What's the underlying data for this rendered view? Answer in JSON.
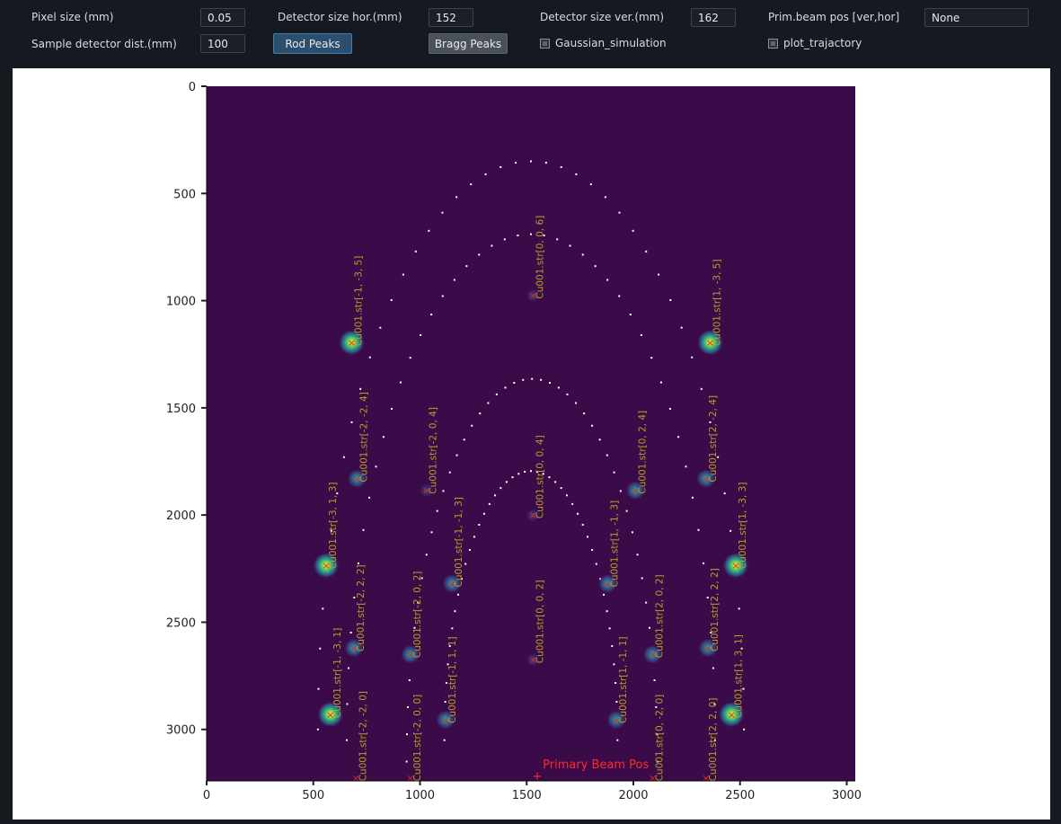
{
  "controls": {
    "pixel_size": {
      "label": "Pixel size (mm)",
      "value": "0.05"
    },
    "detector_hor": {
      "label": "Detector size hor.(mm)",
      "value": "152"
    },
    "detector_ver": {
      "label": "Detector size ver.(mm)",
      "value": "162"
    },
    "prim_beam": {
      "label": "Prim.beam pos [ver,hor]",
      "value": "None"
    },
    "sample_dist": {
      "label": "Sample detector dist.(mm)",
      "value": "100"
    },
    "rod_peaks_label": "Rod Peaks",
    "bragg_peaks_label": "Bragg Peaks",
    "gaussian_label": "Gaussian_simulation",
    "trajectory_label": "plot_trajactory"
  },
  "chart_data": {
    "type": "scatter",
    "title": "",
    "xlabel": "",
    "ylabel": "",
    "xlim": [
      0,
      3040
    ],
    "ylim": [
      3240,
      0
    ],
    "y_inverted": true,
    "grid": false,
    "x_ticks": [
      0,
      500,
      1000,
      1500,
      2000,
      2500,
      3000
    ],
    "y_ticks": [
      0,
      500,
      1000,
      1500,
      2000,
      2500,
      3000
    ],
    "background_color": "#3b0a48",
    "label_color": "#b8a025",
    "marker_color": "#e0251f",
    "trajectory_color": "#ffffff",
    "peaks": [
      {
        "label": "Cu001.str[0, 0, 6]",
        "x": 1530,
        "y": 975,
        "intensity": "weak"
      },
      {
        "label": "Cu001.str[-1, -3, 5]",
        "x": 680,
        "y": 1195,
        "intensity": "strong"
      },
      {
        "label": "Cu001.str[1, -3, 5]",
        "x": 2360,
        "y": 1195,
        "intensity": "strong"
      },
      {
        "label": "Cu001.str[-2, -2, 4]",
        "x": 705,
        "y": 1830,
        "intensity": "medium"
      },
      {
        "label": "Cu001.str[-2, 0, 4]",
        "x": 1030,
        "y": 1885,
        "intensity": "weak"
      },
      {
        "label": "Cu001.str[0, 0, 4]",
        "x": 1530,
        "y": 2000,
        "intensity": "weak"
      },
      {
        "label": "Cu001.str[0, 2, 4]",
        "x": 2010,
        "y": 1885,
        "intensity": "medium"
      },
      {
        "label": "Cu001.str[2, -2, 4]",
        "x": 2340,
        "y": 1830,
        "intensity": "medium"
      },
      {
        "label": "Cu001.str[-3, 1, 3]",
        "x": 560,
        "y": 2235,
        "intensity": "strong"
      },
      {
        "label": "Cu001.str[-1, -1, 3]",
        "x": 1150,
        "y": 2320,
        "intensity": "medium"
      },
      {
        "label": "Cu001.str[1, -1, 3]",
        "x": 1880,
        "y": 2320,
        "intensity": "medium"
      },
      {
        "label": "Cu001.str[1, -3, 3]",
        "x": 2480,
        "y": 2235,
        "intensity": "strong"
      },
      {
        "label": "Cu001.str[-2, 2, 2]",
        "x": 690,
        "y": 2620,
        "intensity": "medium"
      },
      {
        "label": "Cu001.str[-2, 0, 2]",
        "x": 955,
        "y": 2650,
        "intensity": "medium"
      },
      {
        "label": "Cu001.str[0, 0, 2]",
        "x": 1530,
        "y": 2675,
        "intensity": "weak"
      },
      {
        "label": "Cu001.str[2, 0, 2]",
        "x": 2090,
        "y": 2650,
        "intensity": "medium"
      },
      {
        "label": "Cu001.str[2, 2, 2]",
        "x": 2350,
        "y": 2620,
        "intensity": "medium"
      },
      {
        "label": "Cu001.str[-1, -3, 1]",
        "x": 580,
        "y": 2930,
        "intensity": "strong"
      },
      {
        "label": "Cu001.str[-1, 1, 1]",
        "x": 1120,
        "y": 2955,
        "intensity": "medium"
      },
      {
        "label": "Cu001.str[1, -1, 1]",
        "x": 1920,
        "y": 2955,
        "intensity": "medium"
      },
      {
        "label": "Cu001.str[1, 3, 1]",
        "x": 2460,
        "y": 2930,
        "intensity": "strong"
      },
      {
        "label": "Cu001.str[-2, -2, 0]",
        "x": 700,
        "y": 3225,
        "intensity": "none"
      },
      {
        "label": "Cu001.str[-2, 0, 0]",
        "x": 955,
        "y": 3225,
        "intensity": "none"
      },
      {
        "label": "Cu001.str[0, -2, 0]",
        "x": 2090,
        "y": 3225,
        "intensity": "none"
      },
      {
        "label": "Cu001.str[2, 2, 0]",
        "x": 2340,
        "y": 3225,
        "intensity": "none"
      }
    ],
    "primary_beam": {
      "label": "Primary Beam Pos",
      "x": 1550,
      "y": 3215,
      "color": "#ff2a2a"
    },
    "trajectories": [
      {
        "type": "arc",
        "x_left": 560,
        "x_right": 2480,
        "apex_y": 350,
        "base_y": 3000
      },
      {
        "type": "arc",
        "x_left": 690,
        "x_right": 2350,
        "apex_y": 690,
        "base_y": 3050
      },
      {
        "type": "arc",
        "x_left": 960,
        "x_right": 2090,
        "apex_y": 1365,
        "base_y": 3150
      },
      {
        "type": "arc",
        "x_left": 1130,
        "x_right": 1910,
        "apex_y": 1795,
        "base_y": 3050
      }
    ]
  }
}
